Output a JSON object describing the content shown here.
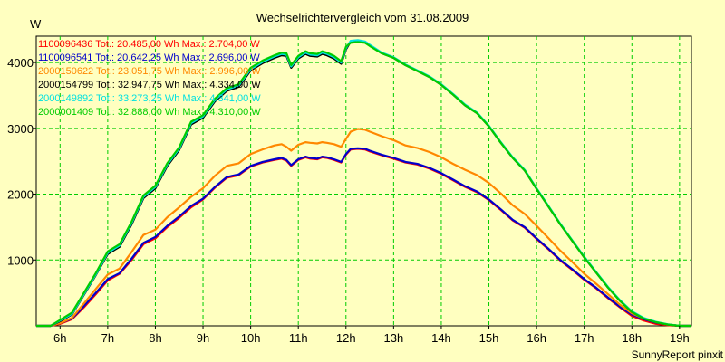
{
  "chart_data": {
    "type": "line",
    "title": "Wechselrichtervergleich vom 31.08.2009",
    "ylabel": "W",
    "footer": "SunnyReport pinxit",
    "xlim": [
      5.5,
      19.25
    ],
    "ylim": [
      0,
      4400
    ],
    "x_ticks": [
      {
        "value": 6,
        "label": "6h"
      },
      {
        "value": 7,
        "label": "7h"
      },
      {
        "value": 8,
        "label": "8h"
      },
      {
        "value": 9,
        "label": "9h"
      },
      {
        "value": 10,
        "label": "10h"
      },
      {
        "value": 11,
        "label": "11h"
      },
      {
        "value": 12,
        "label": "12h"
      },
      {
        "value": 13,
        "label": "13h"
      },
      {
        "value": 14,
        "label": "14h"
      },
      {
        "value": 15,
        "label": "15h"
      },
      {
        "value": 16,
        "label": "16h"
      },
      {
        "value": 17,
        "label": "17h"
      },
      {
        "value": 18,
        "label": "18h"
      },
      {
        "value": 19,
        "label": "19h"
      }
    ],
    "y_ticks": [
      {
        "value": 1000,
        "label": "1000"
      },
      {
        "value": 2000,
        "label": "2000"
      },
      {
        "value": 3000,
        "label": "3000"
      },
      {
        "value": 4000,
        "label": "4000"
      }
    ],
    "grid": true,
    "legend_position": "top-left",
    "x": [
      5.5,
      5.8,
      6.0,
      6.25,
      6.5,
      6.75,
      7.0,
      7.25,
      7.5,
      7.75,
      8.0,
      8.25,
      8.5,
      8.75,
      9.0,
      9.25,
      9.5,
      9.75,
      10.0,
      10.25,
      10.5,
      10.65,
      10.75,
      10.85,
      11.0,
      11.15,
      11.25,
      11.4,
      11.5,
      11.6,
      11.75,
      11.9,
      12.0,
      12.1,
      12.25,
      12.4,
      12.5,
      12.75,
      13.0,
      13.25,
      13.5,
      13.75,
      14.0,
      14.25,
      14.5,
      14.75,
      15.0,
      15.25,
      15.5,
      15.75,
      16.0,
      16.25,
      16.5,
      16.75,
      17.0,
      17.25,
      17.5,
      17.75,
      18.0,
      18.25,
      18.5,
      18.75,
      19.0,
      19.25
    ],
    "series": [
      {
        "name": "1100096436",
        "legend": "1100096436 Tot.: 20.485,00 Wh  Max.: 2.704,00 W",
        "color": "#ff0000",
        "values": [
          0,
          0,
          30,
          100,
          280,
          480,
          690,
          790,
          1000,
          1240,
          1330,
          1500,
          1640,
          1800,
          1920,
          2100,
          2250,
          2290,
          2420,
          2480,
          2520,
          2540,
          2510,
          2430,
          2520,
          2560,
          2540,
          2530,
          2560,
          2550,
          2520,
          2480,
          2600,
          2680,
          2690,
          2680,
          2650,
          2590,
          2540,
          2480,
          2450,
          2390,
          2310,
          2210,
          2110,
          2030,
          1910,
          1760,
          1600,
          1490,
          1320,
          1160,
          990,
          850,
          700,
          570,
          420,
          280,
          150,
          80,
          30,
          10,
          0,
          0
        ]
      },
      {
        "name": "1100096541",
        "legend": "1100096541 Tot.: 20.642,25 Wh  Max.: 2.696,00 W",
        "color": "#0000cc",
        "values": [
          0,
          0,
          40,
          110,
          300,
          500,
          710,
          800,
          1020,
          1260,
          1350,
          1520,
          1660,
          1820,
          1930,
          2110,
          2260,
          2300,
          2430,
          2490,
          2530,
          2550,
          2520,
          2440,
          2530,
          2570,
          2550,
          2540,
          2570,
          2560,
          2530,
          2490,
          2610,
          2690,
          2696,
          2690,
          2660,
          2600,
          2550,
          2490,
          2460,
          2400,
          2320,
          2220,
          2120,
          2040,
          1920,
          1770,
          1610,
          1500,
          1330,
          1170,
          1000,
          860,
          710,
          580,
          430,
          290,
          170,
          100,
          50,
          20,
          0,
          0
        ]
      },
      {
        "name": "2000150622",
        "legend": "2000150622 Tot.: 23.051,75 Wh  Max.: 2.996,00 W",
        "color": "#ff8800",
        "values": [
          0,
          0,
          40,
          120,
          340,
          560,
          780,
          870,
          1120,
          1380,
          1460,
          1650,
          1800,
          1960,
          2090,
          2280,
          2430,
          2470,
          2610,
          2680,
          2740,
          2760,
          2720,
          2660,
          2750,
          2790,
          2780,
          2770,
          2790,
          2780,
          2760,
          2720,
          2840,
          2950,
          2990,
          2980,
          2950,
          2880,
          2820,
          2740,
          2700,
          2640,
          2560,
          2460,
          2370,
          2290,
          2170,
          2010,
          1830,
          1700,
          1520,
          1330,
          1140,
          970,
          790,
          640,
          480,
          320,
          190,
          110,
          55,
          20,
          0,
          0
        ]
      },
      {
        "name": "2000154799",
        "legend": "2000154799 Tot.: 32.947,75 Wh  Max.: 4.334,00 W",
        "color": "#000000",
        "values": [
          0,
          0,
          70,
          170,
          470,
          770,
          1090,
          1200,
          1540,
          1940,
          2090,
          2430,
          2670,
          3060,
          3160,
          3410,
          3570,
          3630,
          3880,
          3990,
          4070,
          4110,
          4100,
          3920,
          4060,
          4130,
          4100,
          4090,
          4130,
          4110,
          4060,
          3980,
          4200,
          4320,
          4334,
          4310,
          4260,
          4140,
          4070,
          3960,
          3870,
          3780,
          3660,
          3510,
          3350,
          3230,
          3030,
          2780,
          2550,
          2360,
          2080,
          1810,
          1540,
          1290,
          1040,
          810,
          580,
          380,
          210,
          110,
          55,
          20,
          0,
          0
        ]
      },
      {
        "name": "2000149892",
        "legend": "2000149892 Tot.: 33.273,25 Wh  Max.: 4.341,00 W",
        "color": "#00e0e0",
        "values": [
          0,
          0,
          80,
          180,
          480,
          780,
          1110,
          1220,
          1560,
          1960,
          2110,
          2450,
          2690,
          3080,
          3180,
          3430,
          3590,
          3650,
          3900,
          4010,
          4090,
          4130,
          4120,
          3940,
          4080,
          4150,
          4120,
          4110,
          4150,
          4130,
          4080,
          4000,
          4220,
          4330,
          4341,
          4320,
          4270,
          4150,
          4080,
          3970,
          3880,
          3790,
          3670,
          3520,
          3360,
          3240,
          3040,
          2790,
          2560,
          2370,
          2090,
          1820,
          1550,
          1300,
          1050,
          820,
          590,
          390,
          220,
          120,
          60,
          25,
          0,
          0
        ]
      },
      {
        "name": "2000001409",
        "legend": "2000001409 Tot.: 32.888,00 Wh  Max.: 4.310,00 W",
        "color": "#00cc00",
        "values": [
          0,
          0,
          90,
          200,
          500,
          800,
          1130,
          1240,
          1580,
          1980,
          2130,
          2470,
          2710,
          3100,
          3200,
          3450,
          3610,
          3670,
          3920,
          4030,
          4110,
          4150,
          4140,
          3960,
          4100,
          4170,
          4140,
          4130,
          4170,
          4150,
          4100,
          4020,
          4240,
          4300,
          4310,
          4300,
          4250,
          4140,
          4070,
          3960,
          3870,
          3780,
          3660,
          3510,
          3350,
          3230,
          3030,
          2780,
          2550,
          2360,
          2080,
          1810,
          1540,
          1290,
          1040,
          810,
          580,
          380,
          210,
          110,
          55,
          20,
          0,
          0
        ]
      }
    ]
  }
}
